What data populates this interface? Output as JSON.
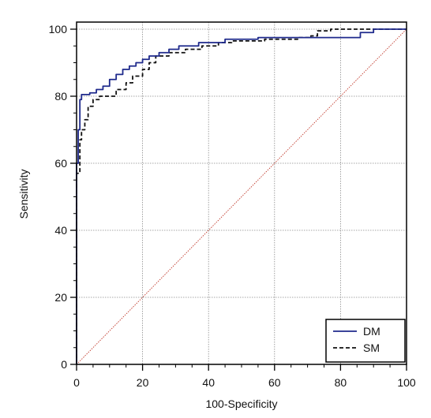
{
  "chart_data": {
    "type": "line",
    "xlabel": "100-Specificity",
    "ylabel": "Sensitivity",
    "xlim": [
      0,
      100
    ],
    "ylim": [
      0,
      100
    ],
    "x_ticks": [
      0,
      20,
      40,
      60,
      80,
      100
    ],
    "y_ticks": [
      0,
      20,
      40,
      60,
      80,
      100
    ],
    "grid": true,
    "legend_position": "bottom-right",
    "series": [
      {
        "name": "DM",
        "color": "#1f2a8c",
        "style": "solid",
        "points": [
          [
            0,
            0
          ],
          [
            0,
            60
          ],
          [
            0.5,
            60
          ],
          [
            0.5,
            70
          ],
          [
            1,
            70
          ],
          [
            1,
            79
          ],
          [
            1.5,
            79
          ],
          [
            1.5,
            80.5
          ],
          [
            4,
            80.5
          ],
          [
            4,
            81
          ],
          [
            6,
            81
          ],
          [
            6,
            82
          ],
          [
            8,
            82
          ],
          [
            8,
            83
          ],
          [
            10,
            83
          ],
          [
            10,
            85
          ],
          [
            12,
            85
          ],
          [
            12,
            86.5
          ],
          [
            14,
            86.5
          ],
          [
            14,
            88
          ],
          [
            16,
            88
          ],
          [
            16,
            89
          ],
          [
            18,
            89
          ],
          [
            18,
            90
          ],
          [
            20,
            90
          ],
          [
            20,
            91
          ],
          [
            22,
            91
          ],
          [
            22,
            92
          ],
          [
            25,
            92
          ],
          [
            25,
            93
          ],
          [
            28,
            93
          ],
          [
            28,
            94
          ],
          [
            31,
            94
          ],
          [
            31,
            95
          ],
          [
            37,
            95
          ],
          [
            37,
            96
          ],
          [
            45,
            96
          ],
          [
            45,
            97
          ],
          [
            55,
            97
          ],
          [
            55,
            97.5
          ],
          [
            86,
            97.5
          ],
          [
            86,
            99
          ],
          [
            90,
            99
          ],
          [
            90,
            100
          ],
          [
            100,
            100
          ]
        ]
      },
      {
        "name": "SM",
        "color": "#111111",
        "style": "dashed",
        "points": [
          [
            0,
            0
          ],
          [
            0,
            57
          ],
          [
            1,
            57
          ],
          [
            1,
            67
          ],
          [
            1.5,
            67
          ],
          [
            1.5,
            70
          ],
          [
            2.5,
            70
          ],
          [
            2.5,
            73
          ],
          [
            3.5,
            73
          ],
          [
            3.5,
            77
          ],
          [
            5,
            77
          ],
          [
            5,
            79
          ],
          [
            7,
            79
          ],
          [
            7,
            80
          ],
          [
            12,
            80
          ],
          [
            12,
            82
          ],
          [
            15,
            82
          ],
          [
            15,
            84
          ],
          [
            17,
            84
          ],
          [
            17,
            86
          ],
          [
            20,
            86
          ],
          [
            20,
            88
          ],
          [
            22,
            88
          ],
          [
            22,
            90
          ],
          [
            24,
            90
          ],
          [
            24,
            92
          ],
          [
            28,
            92
          ],
          [
            28,
            93
          ],
          [
            33,
            93
          ],
          [
            33,
            94
          ],
          [
            38,
            94
          ],
          [
            38,
            95
          ],
          [
            43,
            95
          ],
          [
            43,
            96
          ],
          [
            47,
            96
          ],
          [
            47,
            96.5
          ],
          [
            57,
            96.5
          ],
          [
            57,
            97
          ],
          [
            67,
            97
          ],
          [
            67,
            97.5
          ],
          [
            71,
            97.5
          ],
          [
            71,
            98
          ],
          [
            73,
            98
          ],
          [
            73,
            99.5
          ],
          [
            77,
            99.5
          ],
          [
            77,
            100
          ],
          [
            100,
            100
          ]
        ]
      },
      {
        "name": "",
        "color": "#c0392b",
        "style": "dotted",
        "points": [
          [
            0,
            0
          ],
          [
            100,
            100
          ]
        ]
      }
    ],
    "legend": [
      "DM",
      "SM"
    ]
  }
}
